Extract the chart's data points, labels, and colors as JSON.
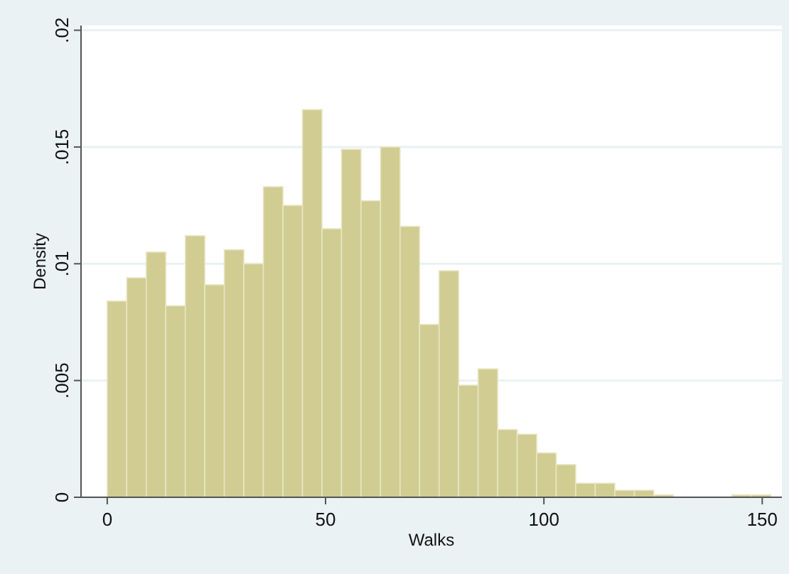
{
  "chart_data": {
    "type": "histogram",
    "xlabel": "Walks",
    "ylabel": "Density",
    "color": "#d1cc92",
    "bins": [
      0,
      4.47,
      8.94,
      13.41,
      17.88,
      22.35,
      26.82,
      31.29,
      35.76,
      40.24,
      44.71,
      49.18,
      53.65,
      58.12,
      62.59,
      67.06,
      71.53,
      76,
      80.47,
      84.94,
      89.41,
      93.88,
      98.35,
      102.82,
      107.29,
      111.76,
      116.24,
      120.71,
      125.18,
      129.65,
      134.12,
      138.59,
      143.06,
      147.53,
      152
    ],
    "values": [
      0.0084,
      0.0094,
      0.0105,
      0.0082,
      0.0112,
      0.0091,
      0.0106,
      0.01,
      0.0133,
      0.0125,
      0.0166,
      0.0115,
      0.0149,
      0.0127,
      0.015,
      0.0116,
      0.0074,
      0.0097,
      0.0048,
      0.0055,
      0.0029,
      0.0027,
      0.0019,
      0.0014,
      0.0006,
      0.0006,
      0.0003,
      0.0003,
      0.0001,
      0,
      0,
      0,
      0.0001,
      0.0001
    ],
    "xlim": [
      -6,
      154.5
    ],
    "xticks": [
      0,
      50,
      100,
      150
    ],
    "ylim": [
      0,
      0.0202
    ],
    "yticks": [
      {
        "value": 0,
        "label": "0"
      },
      {
        "value": 0.005,
        "label": ".005"
      },
      {
        "value": 0.01,
        "label": ".01"
      },
      {
        "value": 0.015,
        "label": ".015"
      },
      {
        "value": 0.02,
        "label": ".02"
      }
    ],
    "grid": "y"
  }
}
